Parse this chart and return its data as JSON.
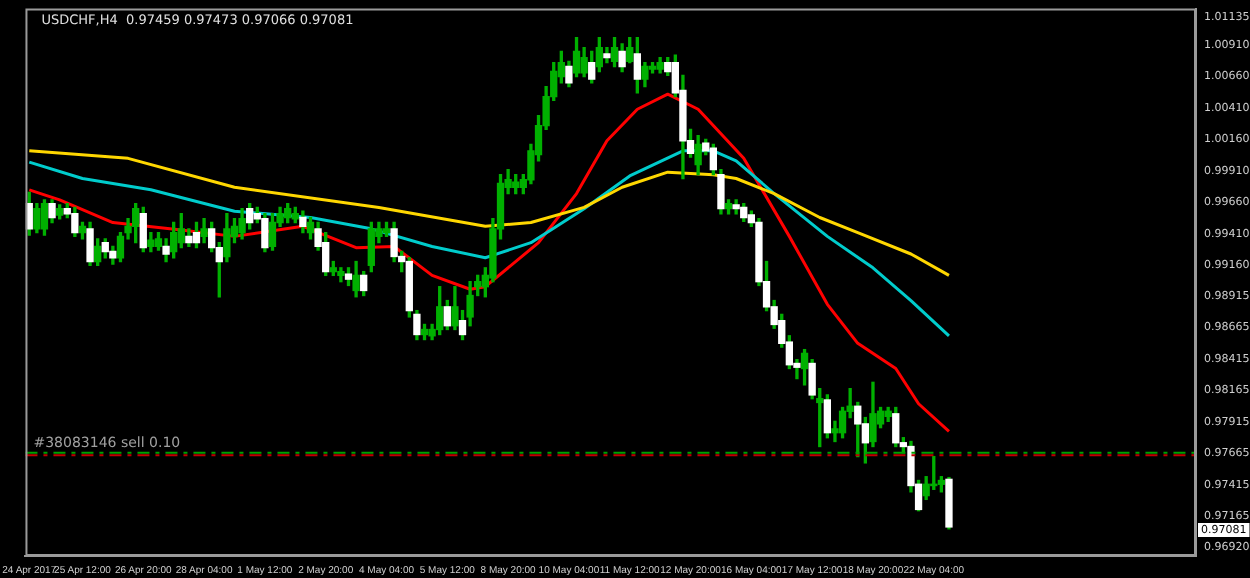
{
  "chart_data": {
    "type": "candlestick",
    "title": "USDCHF,H4  0.97459 0.97473 0.97066 0.97081",
    "categories": [
      "24 Apr 2017",
      null,
      null,
      null,
      null,
      null,
      null,
      "25 Apr 12:00",
      null,
      null,
      null,
      null,
      null,
      null,
      null,
      "26 Apr 20:00",
      null,
      null,
      null,
      null,
      null,
      null,
      null,
      "28 Apr 04:00",
      null,
      null,
      null,
      null,
      null,
      null,
      null,
      "1 May 12:00",
      null,
      null,
      null,
      null,
      null,
      null,
      null,
      "2 May 20:00",
      null,
      null,
      null,
      null,
      null,
      null,
      null,
      "4 May 04:00",
      null,
      null,
      null,
      null,
      null,
      null,
      null,
      "5 May 12:00",
      null,
      null,
      null,
      null,
      null,
      null,
      null,
      "8 May 20:00",
      null,
      null,
      null,
      null,
      null,
      null,
      null,
      "10 May 04:00",
      null,
      null,
      null,
      null,
      null,
      null,
      null,
      "11 May 12:00",
      null,
      null,
      null,
      null,
      null,
      null,
      null,
      "12 May 20:00",
      null,
      null,
      null,
      null,
      null,
      null,
      null,
      "16 May 04:00",
      null,
      null,
      null,
      null,
      null,
      null,
      null,
      "17 May 12:00",
      null,
      null,
      null,
      null,
      null,
      null,
      null,
      "18 May 20:00",
      null,
      null,
      null,
      null,
      null,
      null,
      null,
      "22 May 04:00",
      null,
      null,
      null,
      null,
      null,
      null,
      null,
      null,
      null,
      null,
      null,
      null,
      null,
      null,
      null,
      null,
      null,
      null,
      null,
      null,
      null,
      null,
      null,
      null,
      null,
      null,
      null,
      null,
      null,
      null,
      null,
      null,
      null,
      null
    ],
    "ohlc": [
      [
        0.9965,
        0.9974,
        0.994,
        0.9945
      ],
      [
        0.9945,
        0.9965,
        0.9942,
        0.9961
      ],
      [
        0.9945,
        0.9968,
        0.994,
        0.9965
      ],
      [
        0.9965,
        0.9968,
        0.995,
        0.9954
      ],
      [
        0.9956,
        0.9964,
        0.9953,
        0.9961
      ],
      [
        0.9961,
        0.9965,
        0.9954,
        0.9957
      ],
      [
        0.9957,
        0.9962,
        0.9939,
        0.9942
      ],
      [
        0.9942,
        0.995,
        0.9937,
        0.9947
      ],
      [
        0.9945,
        0.995,
        0.9916,
        0.9919
      ],
      [
        0.9919,
        0.9937,
        0.9916,
        0.9931
      ],
      [
        0.9934,
        0.9937,
        0.9922,
        0.9927
      ],
      [
        0.9927,
        0.9931,
        0.9917,
        0.9922
      ],
      [
        0.9922,
        0.9942,
        0.9919,
        0.9939
      ],
      [
        0.9942,
        0.9953,
        0.9937,
        0.9947
      ],
      [
        0.9947,
        0.9965,
        0.9934,
        0.9961
      ],
      [
        0.9957,
        0.9962,
        0.9927,
        0.993
      ],
      [
        0.9931,
        0.9942,
        0.9927,
        0.9936
      ],
      [
        0.9931,
        0.9942,
        0.9928,
        0.9937
      ],
      [
        0.9931,
        0.9937,
        0.9919,
        0.9925
      ],
      [
        0.9927,
        0.995,
        0.9922,
        0.9942
      ],
      [
        0.9934,
        0.9957,
        0.993,
        0.9945
      ],
      [
        0.9939,
        0.9945,
        0.9931,
        0.9934
      ],
      [
        0.9942,
        0.995,
        0.993,
        0.9934
      ],
      [
        0.9939,
        0.9953,
        0.9934,
        0.9945
      ],
      [
        0.9945,
        0.995,
        0.9927,
        0.993
      ],
      [
        0.993,
        0.9934,
        0.9891,
        0.9919
      ],
      [
        0.9923,
        0.9957,
        0.9919,
        0.9945
      ],
      [
        0.9939,
        0.9953,
        0.9934,
        0.9947
      ],
      [
        0.9942,
        0.9961,
        0.9937,
        0.9953
      ],
      [
        0.9961,
        0.9965,
        0.9945,
        0.995
      ],
      [
        0.9957,
        0.9962,
        0.995,
        0.9953
      ],
      [
        0.9953,
        0.9957,
        0.9927,
        0.993
      ],
      [
        0.9931,
        0.9957,
        0.9928,
        0.995
      ],
      [
        0.995,
        0.9962,
        0.9947,
        0.9957
      ],
      [
        0.9954,
        0.9965,
        0.995,
        0.9961
      ],
      [
        0.9953,
        0.9962,
        0.995,
        0.9957
      ],
      [
        0.9954,
        0.9959,
        0.9942,
        0.9947
      ],
      [
        0.9942,
        0.9954,
        0.9937,
        0.995
      ],
      [
        0.9945,
        0.995,
        0.9928,
        0.9931
      ],
      [
        0.9934,
        0.9942,
        0.9908,
        0.9911
      ],
      [
        0.9911,
        0.9919,
        0.9908,
        0.9914
      ],
      [
        0.9908,
        0.9914,
        0.9903,
        0.9911
      ],
      [
        0.9909,
        0.9914,
        0.99,
        0.9905
      ],
      [
        0.9896,
        0.9919,
        0.9891,
        0.9908
      ],
      [
        0.9908,
        0.9911,
        0.9892,
        0.9896
      ],
      [
        0.9916,
        0.995,
        0.9911,
        0.9945
      ],
      [
        0.9939,
        0.995,
        0.9934,
        0.9945
      ],
      [
        0.9942,
        0.995,
        0.9939,
        0.9945
      ],
      [
        0.9945,
        0.995,
        0.9919,
        0.9923
      ],
      [
        0.9923,
        0.9927,
        0.9911,
        0.9919
      ],
      [
        0.9919,
        0.9922,
        0.9875,
        0.988
      ],
      [
        0.9877,
        0.988,
        0.9857,
        0.9861
      ],
      [
        0.9861,
        0.9869,
        0.9857,
        0.9865
      ],
      [
        0.986,
        0.9869,
        0.9857,
        0.9865
      ],
      [
        0.9865,
        0.9899,
        0.9861,
        0.9883
      ],
      [
        0.9883,
        0.9888,
        0.9865,
        0.9868
      ],
      [
        0.9868,
        0.9899,
        0.9865,
        0.9883
      ],
      [
        0.9872,
        0.988,
        0.9857,
        0.9861
      ],
      [
        0.9875,
        0.9903,
        0.9868,
        0.9892
      ],
      [
        0.9899,
        0.9908,
        0.9892,
        0.9903
      ],
      [
        0.9899,
        0.9914,
        0.9891,
        0.9908
      ],
      [
        0.9906,
        0.9953,
        0.9903,
        0.9945
      ],
      [
        0.9945,
        0.9988,
        0.9937,
        0.9981
      ],
      [
        0.9978,
        0.9992,
        0.9973,
        0.9984
      ],
      [
        0.9978,
        0.9988,
        0.9973,
        0.9982
      ],
      [
        0.9978,
        0.9988,
        0.9973,
        0.9984
      ],
      [
        0.9984,
        1.0012,
        0.9981,
        1.0007
      ],
      [
        1.0004,
        1.0035,
        0.9999,
        1.0027
      ],
      [
        1.0027,
        1.0058,
        1.0024,
        1.005
      ],
      [
        1.005,
        1.0077,
        1.0047,
        1.007
      ],
      [
        1.0066,
        1.0086,
        1.0061,
        1.0077
      ],
      [
        1.0074,
        1.0078,
        1.0058,
        1.0061
      ],
      [
        1.0069,
        1.0097,
        1.0066,
        1.0086
      ],
      [
        1.0069,
        1.0089,
        1.0066,
        1.0081
      ],
      [
        1.0077,
        1.0086,
        1.0061,
        1.0064
      ],
      [
        1.0074,
        1.0097,
        1.007,
        1.0089
      ],
      [
        1.0084,
        1.0089,
        1.0077,
        1.0081
      ],
      [
        1.0078,
        1.0097,
        1.0074,
        1.0089
      ],
      [
        1.0086,
        1.0092,
        1.007,
        1.0074
      ],
      [
        1.0078,
        1.0097,
        1.0077,
        1.0089
      ],
      [
        1.0084,
        1.0097,
        1.0053,
        1.0064
      ],
      [
        1.0064,
        1.0077,
        1.0058,
        1.0074
      ],
      [
        1.0072,
        1.0077,
        1.0069,
        1.0074
      ],
      [
        1.0072,
        1.0081,
        1.0069,
        1.0077
      ],
      [
        1.0077,
        1.0081,
        1.0067,
        1.007
      ],
      [
        1.0077,
        1.0083,
        1.005,
        1.0053
      ],
      [
        1.0055,
        1.0067,
        0.9985,
        1.0015
      ],
      [
        1.0015,
        1.0024,
        1.0002,
        1.0005
      ],
      [
        0.9996,
        1.0019,
        0.9988,
        1.0012
      ],
      [
        1.0013,
        1.0016,
        1.0004,
        1.0007
      ],
      [
        1.0009,
        1.0012,
        0.9988,
        0.9992
      ],
      [
        0.9988,
        0.9992,
        0.9957,
        0.9961
      ],
      [
        0.9961,
        0.9968,
        0.9957,
        0.9965
      ],
      [
        0.9964,
        0.9968,
        0.9957,
        0.9961
      ],
      [
        0.9962,
        0.9965,
        0.9951,
        0.9954
      ],
      [
        0.9956,
        0.9959,
        0.9947,
        0.995
      ],
      [
        0.995,
        0.9953,
        0.99,
        0.9903
      ],
      [
        0.9903,
        0.9919,
        0.988,
        0.9883
      ],
      [
        0.9883,
        0.9888,
        0.9866,
        0.9869
      ],
      [
        0.9872,
        0.9877,
        0.9851,
        0.9854
      ],
      [
        0.9855,
        0.986,
        0.9834,
        0.9837
      ],
      [
        0.9838,
        0.9841,
        0.9826,
        0.9835
      ],
      [
        0.9834,
        0.9849,
        0.9821,
        0.9846
      ],
      [
        0.9838,
        0.9841,
        0.981,
        0.9813
      ],
      [
        0.9807,
        0.9818,
        0.9772,
        0.981
      ],
      [
        0.9809,
        0.9813,
        0.9779,
        0.9783
      ],
      [
        0.9783,
        0.9792,
        0.9776,
        0.9786
      ],
      [
        0.9783,
        0.9803,
        0.9779,
        0.98
      ],
      [
        0.98,
        0.9818,
        0.9795,
        0.9804
      ],
      [
        0.9804,
        0.9807,
        0.9764,
        0.979
      ],
      [
        0.979,
        0.9795,
        0.9759,
        0.9775
      ],
      [
        0.9776,
        0.9823,
        0.9772,
        0.9798
      ],
      [
        0.979,
        0.9803,
        0.9787,
        0.98
      ],
      [
        0.9796,
        0.9803,
        0.9792,
        0.98
      ],
      [
        0.9798,
        0.9803,
        0.9772,
        0.9775
      ],
      [
        0.9775,
        0.9779,
        0.9767,
        0.9772
      ],
      [
        0.9772,
        0.9776,
        0.9736,
        0.9741
      ],
      [
        0.9742,
        0.9745,
        0.9721,
        0.9722
      ],
      [
        0.9733,
        0.9748,
        0.973,
        0.9742
      ],
      [
        0.9741,
        0.9764,
        0.9738,
        0.9742
      ],
      [
        0.9742,
        0.9748,
        0.9736,
        0.9745
      ],
      [
        0.97459,
        0.97473,
        0.97066,
        0.97081
      ],
      null,
      null,
      null,
      null,
      null,
      null,
      null,
      null,
      null,
      null,
      null,
      null,
      null,
      null,
      null,
      null,
      null,
      null,
      null,
      null,
      null,
      null,
      null,
      null,
      null,
      null,
      null,
      null,
      null,
      null,
      null,
      null
    ],
    "series": [
      {
        "type": "line",
        "color": "#ffd700",
        "values": [
          1.0007,
          null,
          null,
          null,
          null,
          null,
          null,
          null,
          null,
          null,
          null,
          null,
          null,
          1.0001,
          null,
          null,
          null,
          null,
          null,
          null,
          null,
          null,
          null,
          null,
          null,
          null,
          null,
          0.9978,
          null,
          null,
          null,
          null,
          null,
          null,
          null,
          null,
          null,
          null,
          null,
          null,
          null,
          null,
          null,
          null,
          null,
          null,
          0.9962,
          null,
          null,
          null,
          null,
          null,
          null,
          null,
          null,
          null,
          null,
          null,
          null,
          null,
          0.9947,
          null,
          null,
          null,
          null,
          null,
          0.995,
          null,
          null,
          null,
          null,
          null,
          null,
          0.9962,
          null,
          null,
          null,
          null,
          0.9978,
          null,
          null,
          null,
          null,
          null,
          0.999,
          null,
          null,
          null,
          null,
          null,
          0.9988,
          null,
          null,
          0.9985,
          null,
          null,
          null,
          null,
          0.9973,
          null,
          null,
          null,
          null,
          null,
          0.9954,
          null,
          null,
          null,
          null,
          0.9942,
          null,
          null,
          null,
          null,
          null,
          null,
          0.9925,
          null,
          null,
          null,
          null,
          0.9908,
          null,
          null,
          null,
          null,
          null,
          null,
          null,
          null,
          null,
          null,
          null,
          null,
          null,
          null,
          null,
          null,
          null,
          null,
          null,
          null,
          null,
          null,
          null,
          null,
          null,
          null,
          null,
          null,
          null,
          null,
          null,
          null
        ]
      },
      {
        "type": "line",
        "color": "#00cccc",
        "values": [
          0.9998,
          null,
          null,
          null,
          null,
          null,
          null,
          0.9985,
          null,
          null,
          null,
          null,
          null,
          null,
          null,
          null,
          0.9976,
          null,
          null,
          null,
          null,
          null,
          null,
          null,
          null,
          null,
          null,
          0.9959,
          null,
          null,
          null,
          null,
          null,
          null,
          null,
          null,
          null,
          0.9954,
          null,
          null,
          null,
          null,
          null,
          null,
          null,
          0.9945,
          null,
          null,
          null,
          null,
          null,
          null,
          null,
          0.9931,
          null,
          null,
          null,
          null,
          null,
          null,
          0.9922,
          null,
          null,
          null,
          null,
          null,
          0.9934,
          null,
          null,
          null,
          null,
          null,
          null,
          0.9961,
          null,
          null,
          null,
          null,
          null,
          0.9987,
          null,
          null,
          null,
          null,
          null,
          null,
          1.0007,
          null,
          null,
          null,
          1.0007,
          null,
          null,
          0.9999,
          null,
          null,
          null,
          null,
          0.9973,
          null,
          null,
          null,
          null,
          null,
          null,
          0.9939,
          null,
          null,
          null,
          null,
          null,
          0.9914,
          null,
          null,
          null,
          null,
          0.9888,
          null,
          null,
          null,
          null,
          0.986,
          null,
          null,
          null,
          null,
          null,
          null,
          null,
          null,
          null,
          null,
          null,
          null,
          null,
          null,
          null,
          null,
          null,
          null,
          null,
          null,
          null,
          null,
          null,
          null,
          null,
          null,
          null,
          null,
          null,
          null,
          null,
          null
        ]
      },
      {
        "type": "line",
        "color": "#ff0000",
        "values": [
          0.9976,
          null,
          null,
          null,
          0.9968,
          null,
          null,
          null,
          null,
          null,
          null,
          0.995,
          null,
          null,
          null,
          null,
          null,
          null,
          null,
          null,
          0.9944,
          null,
          null,
          null,
          null,
          null,
          null,
          0.9939,
          null,
          null,
          null,
          null,
          null,
          null,
          null,
          null,
          0.9947,
          null,
          null,
          null,
          null,
          null,
          null,
          0.993,
          null,
          null,
          null,
          null,
          0.9931,
          null,
          null,
          null,
          null,
          0.9908,
          null,
          null,
          null,
          null,
          0.9897,
          null,
          0.9899,
          null,
          null,
          null,
          null,
          null,
          null,
          0.9934,
          null,
          null,
          null,
          null,
          0.9973,
          null,
          null,
          null,
          1.0015,
          null,
          null,
          null,
          1.004,
          null,
          null,
          null,
          1.0052,
          null,
          null,
          null,
          1.004,
          null,
          null,
          null,
          null,
          null,
          1.0001,
          null,
          null,
          null,
          null,
          null,
          0.9939,
          null,
          null,
          null,
          null,
          0.9885,
          null,
          null,
          null,
          0.9854,
          null,
          null,
          null,
          null,
          0.9834,
          null,
          null,
          0.9806,
          null,
          null,
          null,
          0.9784,
          null,
          null,
          null,
          null,
          null,
          null,
          null,
          null,
          null,
          null,
          null,
          null,
          null,
          null,
          null,
          null,
          null,
          null,
          null,
          null,
          null,
          null,
          null,
          null,
          null,
          null,
          null,
          null,
          null,
          null,
          null,
          null
        ]
      }
    ],
    "ylim": [
      0.9685,
      1.012
    ],
    "yticks": [
      1.01135,
      {
        "value": 1.0091,
        "label": "1.00910"
      },
      {
        "value": 1.0066,
        "label": "1.00660"
      },
      {
        "value": 1.0041,
        "label": "1.00410"
      },
      {
        "value": 1.0016,
        "label": "1.00160"
      },
      {
        "value": 0.9991,
        "label": "0.99910"
      },
      {
        "value": 0.9966,
        "label": "0.99660"
      },
      {
        "value": 0.9941,
        "label": "0.99410"
      },
      {
        "value": 0.9916,
        "label": "0.99160"
      },
      0.98915,
      0.98665,
      0.98415,
      0.98165,
      0.97915,
      0.97665,
      0.97415,
      0.97165,
      {
        "value": 0.9692,
        "label": "0.96920"
      }
    ],
    "ref_lines": [
      {
        "axis": "y",
        "value": 0.9767,
        "label": "#38083146 sell 0.10",
        "color": "#00a000",
        "line_style": "dashed"
      },
      {
        "axis": "y",
        "value": 0.9765,
        "color": "#c00000",
        "line_style": "dashed"
      }
    ],
    "annotations": [
      "0.97081"
    ],
    "grid": false,
    "legend": false
  }
}
